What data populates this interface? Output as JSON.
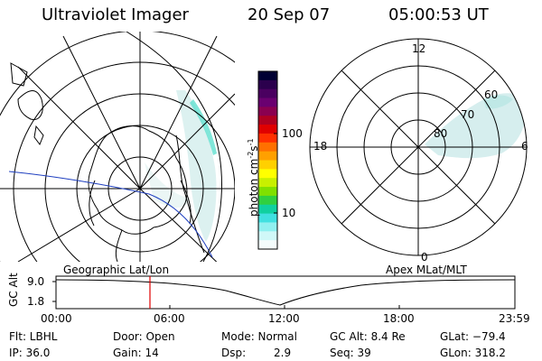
{
  "header": {
    "title": "Ultraviolet Imager",
    "date": "20 Sep 07",
    "time": "05:00:53 UT"
  },
  "colorbar": {
    "unit": "photon cm",
    "unit_sup1": "-2",
    "unit_mid": "s",
    "unit_sup2": "-1",
    "ticks": [
      "100",
      "10"
    ],
    "colors": [
      "#000033",
      "#2b004d",
      "#4a0060",
      "#6a0070",
      "#8a0050",
      "#b00020",
      "#e00000",
      "#ff3000",
      "#ff7000",
      "#ffa000",
      "#ffd000",
      "#ffff00",
      "#c8f000",
      "#80e000",
      "#30d040",
      "#10d0a0",
      "#40e0e0",
      "#90f0f0",
      "#d0f8f8",
      "#f4fcfc"
    ]
  },
  "mlt_plot": {
    "hour_labels": {
      "top": "12",
      "left": "18",
      "right": "6",
      "bottom": "0"
    },
    "lat_labels": [
      "60",
      "70",
      "80"
    ]
  },
  "timeline": {
    "left_label": "Geographic Lat/Lon",
    "right_label": "Apex MLat/MLT",
    "axis_title": "GC Alt",
    "y_ticks": [
      "9.0",
      "1.8"
    ],
    "x_ticks": [
      "00:00",
      "06:00",
      "12:00",
      "18:00",
      "23:59"
    ],
    "current_marker": "05:00:53"
  },
  "status": {
    "flt": "Flt: LBHL",
    "door": "Door: Open",
    "mode": "Mode: Normal",
    "gc_alt": "GC Alt: 8.4 Re",
    "glat": "GLat: −79.4",
    "ip": "IP: 36.0",
    "gain": "Gain: 14",
    "dsp_label": "Dsp:",
    "dsp_value": "2.9",
    "seq": "Seq: 39",
    "glon": "GLon: 318.2"
  }
}
